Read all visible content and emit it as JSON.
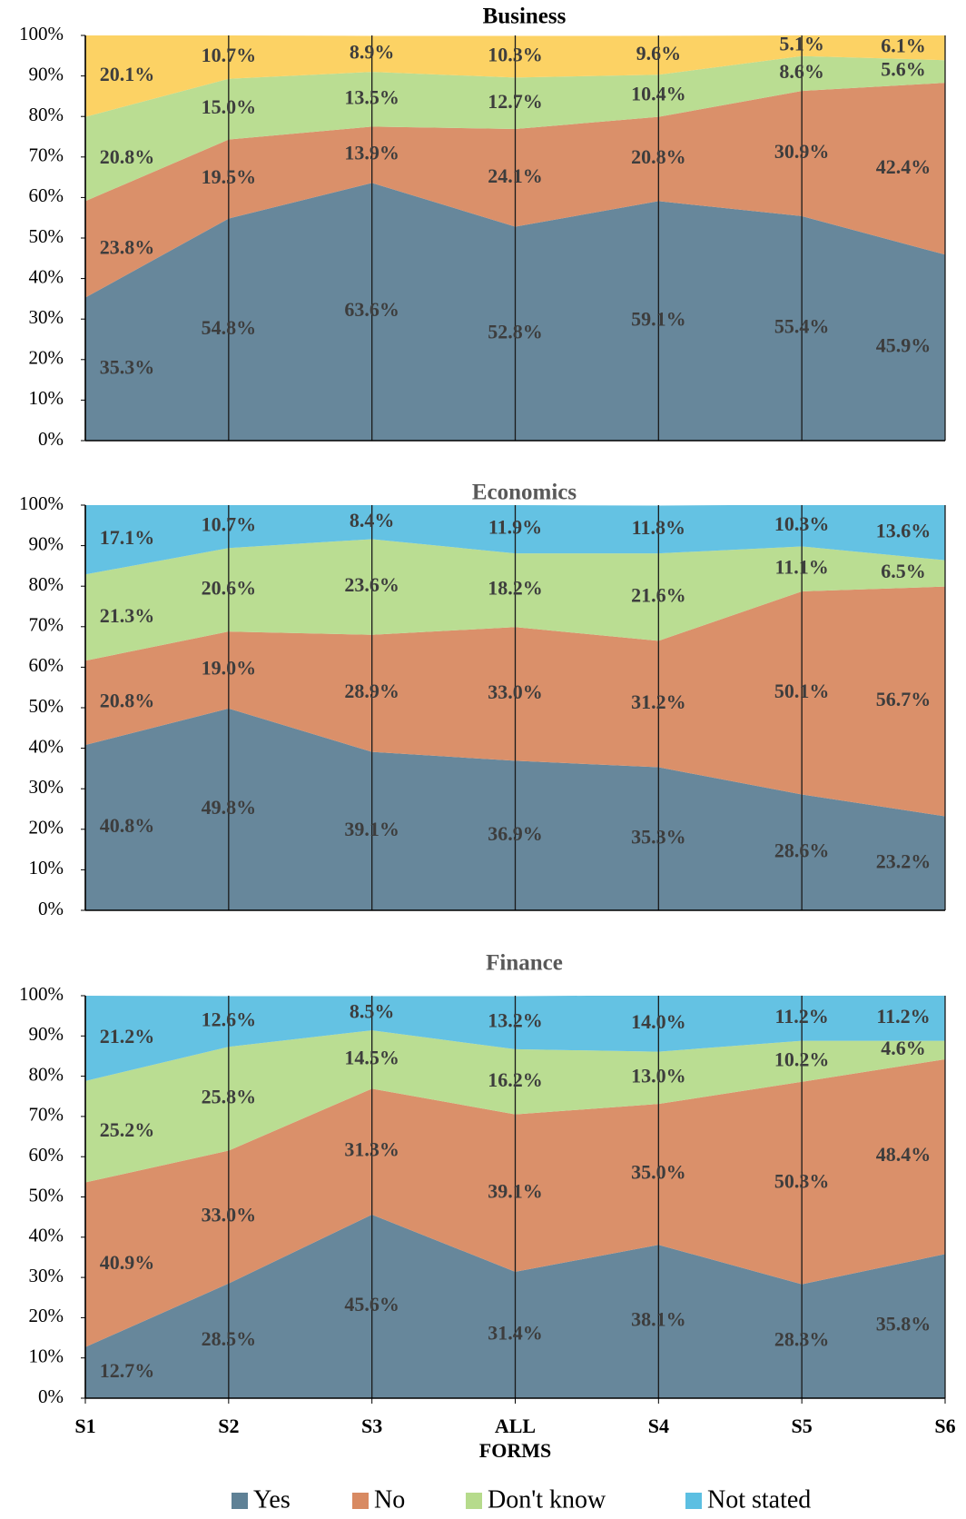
{
  "chart_data": [
    {
      "type": "area",
      "title": "Business",
      "title_color": "#000000",
      "categories": [
        "S1",
        "S2",
        "S3",
        "ALL FORMS",
        "S4",
        "S5",
        "S6"
      ],
      "ylim": [
        0,
        100
      ],
      "yticks": [
        {
          "value": 0,
          "label": "0%"
        },
        {
          "value": 10,
          "label": "10%"
        },
        {
          "value": 20,
          "label": "20%"
        },
        {
          "value": 30,
          "label": "30%"
        },
        {
          "value": 40,
          "label": "40%"
        },
        {
          "value": 50,
          "label": "50%"
        },
        {
          "value": 60,
          "label": "60%"
        },
        {
          "value": 70,
          "label": "70%"
        },
        {
          "value": 80,
          "label": "80%"
        },
        {
          "value": 90,
          "label": "90%"
        },
        {
          "value": 100,
          "label": "100%"
        }
      ],
      "series": [
        {
          "name": "Yes",
          "color": "#5f8196",
          "values": [
            35.3,
            54.8,
            63.6,
            52.8,
            59.1,
            55.4,
            45.9
          ],
          "value_labels": [
            "35.3%",
            "54.8%",
            "63.6%",
            "52.8%",
            "59.1%",
            "55.4%",
            "45.9%"
          ]
        },
        {
          "name": "No",
          "color": "#d88a62",
          "values": [
            23.8,
            19.5,
            13.9,
            24.1,
            20.8,
            30.9,
            42.4
          ],
          "value_labels": [
            "23.8%",
            "19.5%",
            "13.9%",
            "24.1%",
            "20.8%",
            "30.9%",
            "42.4%"
          ]
        },
        {
          "name": "Don't know",
          "color": "#b6db8c",
          "values": [
            20.8,
            15.0,
            13.5,
            12.7,
            10.4,
            8.6,
            5.6
          ],
          "value_labels": [
            "20.8%",
            "15.0%",
            "13.5%",
            "12.7%",
            "10.4%",
            "8.6%",
            "5.6%"
          ]
        },
        {
          "name": "Not stated",
          "color": "#fcd05c",
          "values": [
            20.1,
            10.7,
            8.9,
            10.3,
            9.6,
            5.1,
            6.1
          ],
          "value_labels": [
            "20.1%",
            "10.7%",
            "8.9%",
            "10.3%",
            "9.6%",
            "5.1%",
            "6.1%"
          ]
        }
      ]
    },
    {
      "type": "area",
      "title": "Economics",
      "title_color": "#595959",
      "categories": [
        "S1",
        "S2",
        "S3",
        "ALL FORMS",
        "S4",
        "S5",
        "S6"
      ],
      "ylim": [
        0,
        100
      ],
      "yticks": [
        {
          "value": 0,
          "label": "0%"
        },
        {
          "value": 10,
          "label": "10%"
        },
        {
          "value": 20,
          "label": "20%"
        },
        {
          "value": 30,
          "label": "30%"
        },
        {
          "value": 40,
          "label": "40%"
        },
        {
          "value": 50,
          "label": "50%"
        },
        {
          "value": 60,
          "label": "60%"
        },
        {
          "value": 70,
          "label": "70%"
        },
        {
          "value": 80,
          "label": "80%"
        },
        {
          "value": 90,
          "label": "90%"
        },
        {
          "value": 100,
          "label": "100%"
        }
      ],
      "series": [
        {
          "name": "Yes",
          "color": "#5f8196",
          "values": [
            40.8,
            49.8,
            39.1,
            36.9,
            35.3,
            28.6,
            23.2
          ],
          "value_labels": [
            "40.8%",
            "49.8%",
            "39.1%",
            "36.9%",
            "35.3%",
            "28.6%",
            "23.2%"
          ]
        },
        {
          "name": "No",
          "color": "#d88a62",
          "values": [
            20.8,
            19.0,
            28.9,
            33.0,
            31.2,
            50.1,
            56.7
          ],
          "value_labels": [
            "20.8%",
            "19.0%",
            "28.9%",
            "33.0%",
            "31.2%",
            "50.1%",
            "56.7%"
          ]
        },
        {
          "name": "Don't know",
          "color": "#b6db8c",
          "values": [
            21.3,
            20.6,
            23.6,
            18.2,
            21.6,
            11.1,
            6.5
          ],
          "value_labels": [
            "21.3%",
            "20.6%",
            "23.6%",
            "18.2%",
            "21.6%",
            "11.1%",
            "6.5%"
          ]
        },
        {
          "name": "Not stated",
          "color": "#5cbfe2",
          "values": [
            17.1,
            10.7,
            8.4,
            11.9,
            11.8,
            10.3,
            13.6
          ],
          "value_labels": [
            "17.1%",
            "10.7%",
            "8.4%",
            "11.9%",
            "11.8%",
            "10.3%",
            "13.6%"
          ]
        }
      ]
    },
    {
      "type": "area",
      "title": "Finance",
      "title_color": "#595959",
      "categories": [
        "S1",
        "S2",
        "S3",
        "ALL FORMS",
        "S4",
        "S5",
        "S6"
      ],
      "ylim": [
        0,
        100
      ],
      "yticks": [
        {
          "value": 0,
          "label": "0%"
        },
        {
          "value": 10,
          "label": "10%"
        },
        {
          "value": 20,
          "label": "20%"
        },
        {
          "value": 30,
          "label": "30%"
        },
        {
          "value": 40,
          "label": "40%"
        },
        {
          "value": 50,
          "label": "50%"
        },
        {
          "value": 60,
          "label": "60%"
        },
        {
          "value": 70,
          "label": "70%"
        },
        {
          "value": 80,
          "label": "80%"
        },
        {
          "value": 90,
          "label": "90%"
        },
        {
          "value": 100,
          "label": "100%"
        }
      ],
      "series": [
        {
          "name": "Yes",
          "color": "#5f8196",
          "values": [
            12.7,
            28.5,
            45.6,
            31.4,
            38.1,
            28.3,
            35.8
          ],
          "value_labels": [
            "12.7%",
            "28.5%",
            "45.6%",
            "31.4%",
            "38.1%",
            "28.3%",
            "35.8%"
          ]
        },
        {
          "name": "No",
          "color": "#d88a62",
          "values": [
            40.9,
            33.0,
            31.3,
            39.1,
            35.0,
            50.3,
            48.4
          ],
          "value_labels": [
            "40.9%",
            "33.0%",
            "31.3%",
            "39.1%",
            "35.0%",
            "50.3%",
            "48.4%"
          ]
        },
        {
          "name": "Don't know",
          "color": "#b6db8c",
          "values": [
            25.2,
            25.8,
            14.5,
            16.2,
            13.0,
            10.2,
            4.6
          ],
          "value_labels": [
            "25.2%",
            "25.8%",
            "14.5%",
            "16.2%",
            "13.0%",
            "10.2%",
            "4.6%"
          ]
        },
        {
          "name": "Not stated",
          "color": "#5cbfe2",
          "values": [
            21.2,
            12.6,
            8.5,
            13.2,
            14.0,
            11.2,
            11.2
          ],
          "value_labels": [
            "21.2%",
            "12.6%",
            "8.5%",
            "13.2%",
            "14.0%",
            "11.2%",
            "11.2%"
          ]
        }
      ]
    }
  ]
}
